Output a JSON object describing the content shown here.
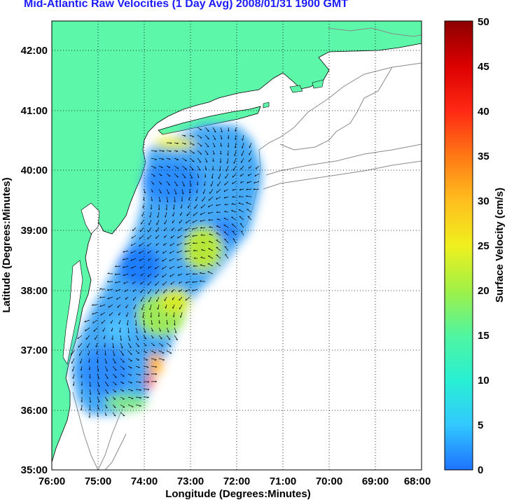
{
  "title": "Mid-Atlantic Raw Velocities (1 Day Avg) 2008/01/31 1900 GMT",
  "x_axis": {
    "label": "Longitude (Degrees:Minutes)",
    "ticks": [
      "76:00",
      "75:00",
      "74:00",
      "73:00",
      "72:00",
      "71:00",
      "70:00",
      "69:00",
      "68:00"
    ]
  },
  "y_axis": {
    "label": "Latitude (Degrees:Minutes)",
    "ticks": [
      "42:00",
      "41:00",
      "40:00",
      "39:00",
      "38:00",
      "37:00",
      "36:00",
      "35:00"
    ]
  },
  "colorbar": {
    "label": "Surface Velocity (cm/s)",
    "ticks": [
      "50",
      "45",
      "40",
      "35",
      "30",
      "25",
      "20",
      "15",
      "10",
      "5",
      "0"
    ],
    "colors": [
      "#1e73ff",
      "#32c8ff",
      "#28f0d2",
      "#50f5a0",
      "#a0f046",
      "#f0f01e",
      "#ffbe1e",
      "#ff7814",
      "#ff2814",
      "#dc0000",
      "#8c0000"
    ]
  },
  "colors": {
    "land": "#5cf7a9",
    "coast_line": "#8a8a8a",
    "title": "#1c1cff",
    "arrow": "#000000"
  }
}
